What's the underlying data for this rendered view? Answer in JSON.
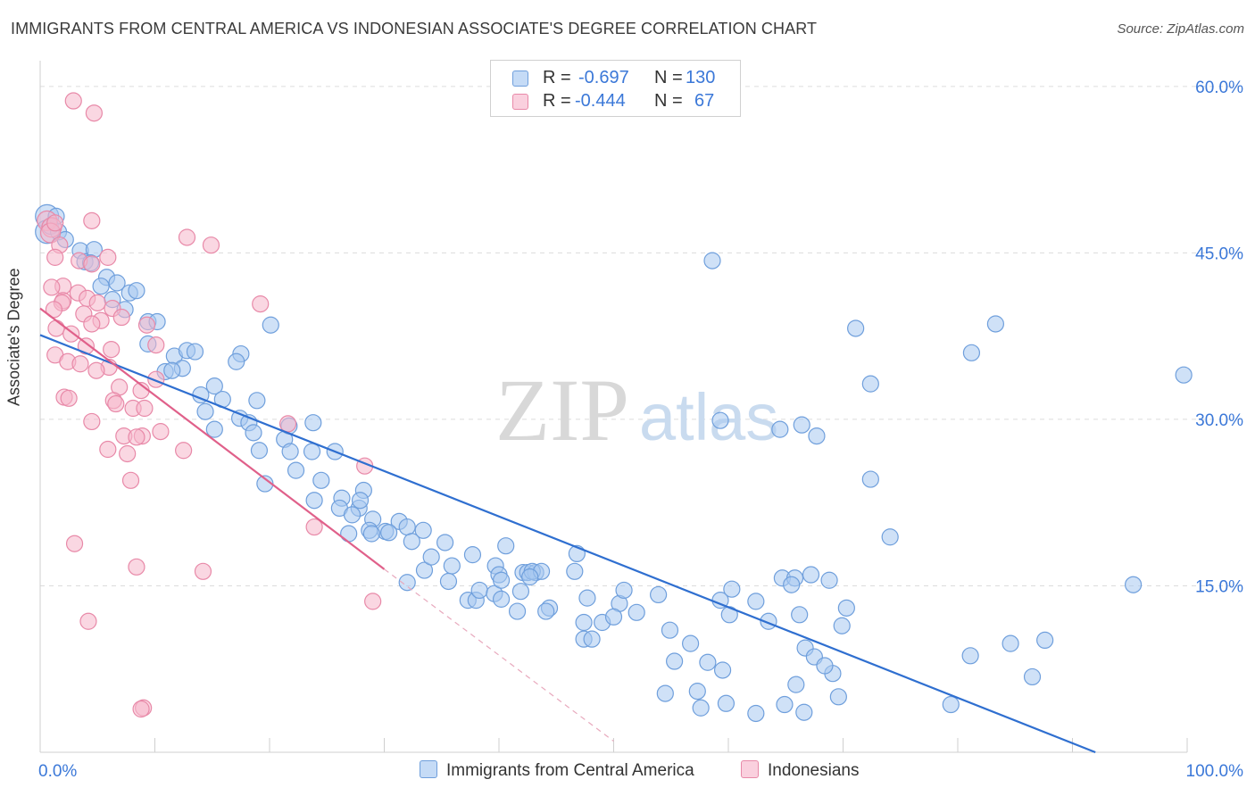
{
  "title": "IMMIGRANTS FROM CENTRAL AMERICA VS INDONESIAN ASSOCIATE'S DEGREE CORRELATION CHART",
  "source": "Source: ZipAtlas.com",
  "watermark": {
    "zip": "ZIP",
    "atlas": "atlas"
  },
  "legend": {
    "r_label": "R =",
    "n_label": "N =",
    "rows": [
      {
        "r": "-0.697",
        "n": "130",
        "color": "#a8c8f0",
        "border": "#6f9fdc"
      },
      {
        "r": "-0.444",
        "n": "67",
        "color": "#f6b6cb",
        "border": "#e889a8"
      }
    ]
  },
  "bottom_legend": [
    "Immigrants from Central America",
    "Indonesians"
  ],
  "chart_data": {
    "type": "scatter",
    "title": "IMMIGRANTS FROM CENTRAL AMERICA VS INDONESIAN ASSOCIATE'S DEGREE CORRELATION CHART",
    "xlabel": "",
    "ylabel": "Associate's Degree",
    "xlim": [
      0,
      100
    ],
    "ylim": [
      0,
      62
    ],
    "x_tick_labels": [
      "0.0%",
      "100.0%"
    ],
    "y_ticks": [
      15,
      30,
      45,
      60
    ],
    "y_tick_labels": [
      "15.0%",
      "30.0%",
      "45.0%",
      "60.0%"
    ],
    "grid": true,
    "legend_position": "top-center",
    "series": [
      {
        "name": "Immigrants from Central America",
        "color": "#a8c8f0",
        "stroke": "#6f9fdc",
        "trend": {
          "x": [
            0,
            92
          ],
          "y": [
            37.6,
            0
          ],
          "color": "#2f6fd0"
        },
        "points": [
          [
            0.6,
            48.3
          ],
          [
            0.6,
            46.9
          ],
          [
            1.4,
            48.3
          ],
          [
            0.9,
            47.4
          ],
          [
            1.6,
            46.9
          ],
          [
            2.2,
            46.2
          ],
          [
            3.5,
            45.2
          ],
          [
            4.7,
            45.3
          ],
          [
            3.9,
            44.2
          ],
          [
            4.4,
            44.1
          ],
          [
            5.8,
            42.8
          ],
          [
            5.3,
            42.0
          ],
          [
            6.7,
            42.3
          ],
          [
            7.8,
            41.4
          ],
          [
            8.4,
            41.6
          ],
          [
            6.3,
            40.8
          ],
          [
            7.4,
            39.9
          ],
          [
            9.4,
            38.8
          ],
          [
            10.2,
            38.8
          ],
          [
            20.1,
            38.5
          ],
          [
            9.4,
            36.8
          ],
          [
            11.7,
            35.7
          ],
          [
            12.8,
            36.2
          ],
          [
            13.5,
            36.1
          ],
          [
            17.5,
            35.9
          ],
          [
            17.1,
            35.2
          ],
          [
            12.4,
            34.6
          ],
          [
            10.9,
            34.3
          ],
          [
            11.5,
            34.4
          ],
          [
            15.2,
            33.0
          ],
          [
            14.0,
            32.2
          ],
          [
            15.9,
            31.8
          ],
          [
            18.9,
            31.7
          ],
          [
            14.4,
            30.7
          ],
          [
            17.4,
            30.1
          ],
          [
            18.2,
            29.7
          ],
          [
            21.7,
            29.4
          ],
          [
            23.8,
            29.7
          ],
          [
            15.2,
            29.1
          ],
          [
            18.6,
            28.8
          ],
          [
            21.3,
            28.2
          ],
          [
            21.8,
            27.1
          ],
          [
            19.1,
            27.2
          ],
          [
            23.7,
            27.1
          ],
          [
            25.7,
            27.1
          ],
          [
            22.3,
            25.4
          ],
          [
            19.6,
            24.2
          ],
          [
            23.9,
            22.7
          ],
          [
            24.5,
            24.5
          ],
          [
            26.3,
            22.9
          ],
          [
            26.1,
            22.0
          ],
          [
            27.8,
            22.0
          ],
          [
            26.9,
            19.7
          ],
          [
            28.2,
            23.6
          ],
          [
            27.9,
            22.7
          ],
          [
            27.2,
            21.4
          ],
          [
            29.0,
            21.0
          ],
          [
            28.7,
            20.0
          ],
          [
            30.1,
            19.9
          ],
          [
            31.3,
            20.8
          ],
          [
            28.9,
            19.7
          ],
          [
            30.4,
            19.8
          ],
          [
            32.0,
            20.3
          ],
          [
            32.4,
            19.0
          ],
          [
            33.4,
            20.0
          ],
          [
            33.5,
            16.4
          ],
          [
            34.1,
            17.6
          ],
          [
            35.3,
            18.9
          ],
          [
            35.9,
            16.8
          ],
          [
            37.7,
            17.8
          ],
          [
            40.6,
            18.6
          ],
          [
            39.7,
            16.8
          ],
          [
            40.0,
            16.0
          ],
          [
            42.1,
            16.2
          ],
          [
            42.5,
            16.2
          ],
          [
            43.2,
            16.2
          ],
          [
            42.9,
            16.3
          ],
          [
            43.7,
            16.3
          ],
          [
            46.6,
            16.3
          ],
          [
            46.8,
            17.9
          ],
          [
            37.3,
            13.7
          ],
          [
            38.0,
            13.7
          ],
          [
            38.3,
            14.6
          ],
          [
            39.6,
            14.3
          ],
          [
            40.2,
            13.8
          ],
          [
            41.9,
            14.5
          ],
          [
            44.4,
            13.0
          ],
          [
            41.6,
            12.7
          ],
          [
            44.1,
            12.7
          ],
          [
            47.7,
            13.9
          ],
          [
            47.4,
            11.7
          ],
          [
            50.5,
            13.4
          ],
          [
            50.9,
            14.6
          ],
          [
            49.0,
            11.7
          ],
          [
            50.0,
            12.2
          ],
          [
            52.0,
            12.6
          ],
          [
            53.9,
            14.2
          ],
          [
            54.9,
            11.0
          ],
          [
            47.4,
            10.2
          ],
          [
            48.1,
            10.2
          ],
          [
            55.3,
            8.2
          ],
          [
            56.7,
            9.8
          ],
          [
            58.2,
            8.1
          ],
          [
            59.5,
            7.4
          ],
          [
            59.3,
            13.7
          ],
          [
            60.1,
            12.4
          ],
          [
            60.3,
            14.7
          ],
          [
            62.4,
            13.6
          ],
          [
            63.5,
            11.8
          ],
          [
            64.7,
            15.7
          ],
          [
            65.8,
            15.7
          ],
          [
            66.2,
            12.4
          ],
          [
            66.7,
            9.4
          ],
          [
            67.5,
            8.6
          ],
          [
            65.9,
            6.1
          ],
          [
            57.6,
            4.0
          ],
          [
            59.8,
            4.4
          ],
          [
            57.3,
            5.5
          ],
          [
            54.5,
            5.3
          ],
          [
            62.4,
            3.5
          ],
          [
            64.9,
            4.3
          ],
          [
            66.6,
            3.6
          ],
          [
            69.6,
            5.0
          ],
          [
            70.3,
            13.0
          ],
          [
            69.9,
            11.4
          ],
          [
            69.1,
            7.1
          ],
          [
            68.4,
            7.8
          ],
          [
            74.1,
            19.4
          ],
          [
            72.4,
            24.6
          ],
          [
            71.1,
            38.2
          ],
          [
            58.6,
            44.3
          ],
          [
            72.4,
            33.2
          ],
          [
            66.4,
            29.5
          ],
          [
            67.7,
            28.5
          ],
          [
            59.3,
            29.9
          ],
          [
            64.5,
            29.1
          ],
          [
            83.3,
            38.6
          ],
          [
            81.2,
            36.0
          ],
          [
            79.4,
            4.3
          ],
          [
            81.1,
            8.7
          ],
          [
            84.6,
            9.8
          ],
          [
            86.5,
            6.8
          ],
          [
            87.6,
            10.1
          ],
          [
            95.3,
            15.1
          ],
          [
            99.7,
            34.0
          ],
          [
            32.0,
            15.3
          ],
          [
            35.6,
            15.4
          ],
          [
            40.2,
            15.5
          ],
          [
            42.7,
            15.8
          ],
          [
            65.5,
            15.1
          ],
          [
            67.2,
            16.0
          ],
          [
            68.8,
            15.5
          ]
        ]
      },
      {
        "name": "Indonesians",
        "color": "#f6b6cb",
        "stroke": "#e889a8",
        "trend": {
          "x": [
            0,
            30
          ],
          "y": [
            40,
            16.5
          ],
          "color": "#e0608a",
          "dashed_to": [
            50,
            1.0
          ]
        },
        "points": [
          [
            0.6,
            47.9
          ],
          [
            1.0,
            47.3
          ],
          [
            0.9,
            46.8
          ],
          [
            1.3,
            47.7
          ],
          [
            1.7,
            45.7
          ],
          [
            2.9,
            58.7
          ],
          [
            4.7,
            57.6
          ],
          [
            4.5,
            47.9
          ],
          [
            12.8,
            46.4
          ],
          [
            14.9,
            45.7
          ],
          [
            3.4,
            44.3
          ],
          [
            4.5,
            44.0
          ],
          [
            5.9,
            44.6
          ],
          [
            1.3,
            44.6
          ],
          [
            2.0,
            42.0
          ],
          [
            1.0,
            41.9
          ],
          [
            3.3,
            41.4
          ],
          [
            2.0,
            40.7
          ],
          [
            1.9,
            40.5
          ],
          [
            4.1,
            40.9
          ],
          [
            5.0,
            40.5
          ],
          [
            6.3,
            40.0
          ],
          [
            1.2,
            39.9
          ],
          [
            3.8,
            39.5
          ],
          [
            7.1,
            39.2
          ],
          [
            9.3,
            38.5
          ],
          [
            19.2,
            40.4
          ],
          [
            5.3,
            38.9
          ],
          [
            4.5,
            38.6
          ],
          [
            1.4,
            38.2
          ],
          [
            2.7,
            37.7
          ],
          [
            4.0,
            36.6
          ],
          [
            6.2,
            36.3
          ],
          [
            10.1,
            36.7
          ],
          [
            1.3,
            35.8
          ],
          [
            2.4,
            35.2
          ],
          [
            3.5,
            35.0
          ],
          [
            6.0,
            34.7
          ],
          [
            4.9,
            34.4
          ],
          [
            10.1,
            33.6
          ],
          [
            6.9,
            32.9
          ],
          [
            8.8,
            32.6
          ],
          [
            2.1,
            32.0
          ],
          [
            2.5,
            31.9
          ],
          [
            6.4,
            31.7
          ],
          [
            6.6,
            31.4
          ],
          [
            8.1,
            31.0
          ],
          [
            9.1,
            31.0
          ],
          [
            4.5,
            29.8
          ],
          [
            8.9,
            28.5
          ],
          [
            7.3,
            28.5
          ],
          [
            8.4,
            28.4
          ],
          [
            10.5,
            28.9
          ],
          [
            12.5,
            27.2
          ],
          [
            5.9,
            27.3
          ],
          [
            7.6,
            26.9
          ],
          [
            21.6,
            29.6
          ],
          [
            28.3,
            25.8
          ],
          [
            7.9,
            24.5
          ],
          [
            23.9,
            20.3
          ],
          [
            3.0,
            18.8
          ],
          [
            8.4,
            16.7
          ],
          [
            14.2,
            16.3
          ],
          [
            4.2,
            11.8
          ],
          [
            29.0,
            13.6
          ],
          [
            9.0,
            4.0
          ],
          [
            8.8,
            3.9
          ]
        ]
      }
    ]
  }
}
